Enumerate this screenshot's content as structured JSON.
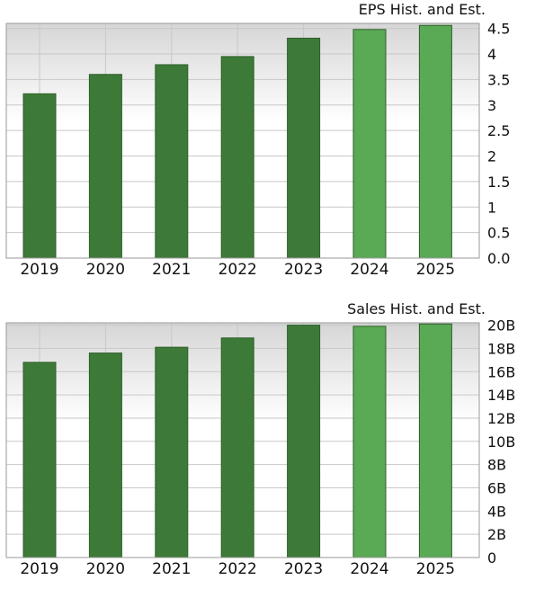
{
  "chart_data": [
    {
      "type": "bar",
      "title": "EPS Hist. and Est.",
      "categories": [
        "2019",
        "2020",
        "2021",
        "2022",
        "2023",
        "2024",
        "2025"
      ],
      "values": [
        3.22,
        3.6,
        3.79,
        3.95,
        4.31,
        4.48,
        4.56
      ],
      "estimate_flags": [
        false,
        false,
        false,
        false,
        false,
        true,
        true
      ],
      "ylim": [
        0,
        4.6
      ],
      "yticks": [
        0,
        0.5,
        1,
        1.5,
        2,
        2.5,
        3,
        3.5,
        4,
        4.5
      ],
      "ytick_labels": [
        "0.0",
        "0.5",
        "1",
        "1.5",
        "2",
        "2.5",
        "3",
        "3.5",
        "4",
        "4.5"
      ],
      "grid": true,
      "y_axis_side": "right",
      "colors": {
        "historical": "#3d7a38",
        "estimate": "#5aa955"
      }
    },
    {
      "type": "bar",
      "title": "Sales Hist. and Est.",
      "categories": [
        "2019",
        "2020",
        "2021",
        "2022",
        "2023",
        "2024",
        "2025"
      ],
      "values": [
        16.8,
        17.6,
        18.1,
        18.9,
        20.0,
        19.9,
        20.1
      ],
      "estimate_flags": [
        false,
        false,
        false,
        false,
        false,
        true,
        true
      ],
      "ylim": [
        0,
        20.2
      ],
      "yticks": [
        0,
        2,
        4,
        6,
        8,
        10,
        12,
        14,
        16,
        18,
        20
      ],
      "ytick_labels": [
        "0",
        "2B",
        "4B",
        "6B",
        "8B",
        "10B",
        "12B",
        "14B",
        "16B",
        "18B",
        "20B"
      ],
      "grid": true,
      "y_axis_side": "right",
      "colors": {
        "historical": "#3d7a38",
        "estimate": "#5aa955"
      }
    }
  ]
}
